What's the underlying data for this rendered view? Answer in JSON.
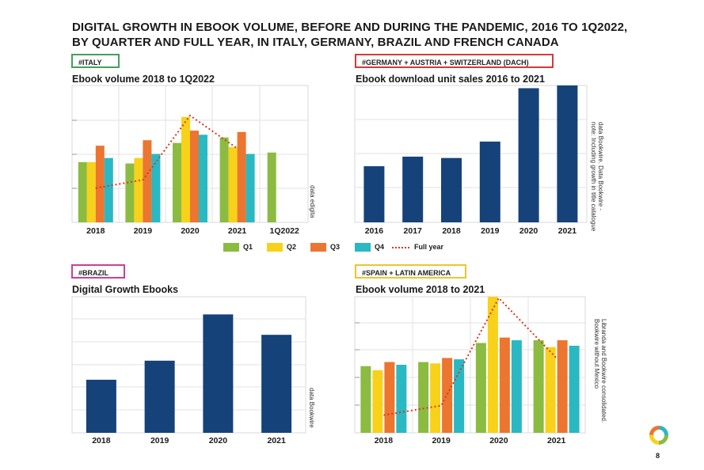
{
  "title_line1": "DIGITAL GROWTH IN EBOOK VOLUME, BEFORE AND DURING THE PANDEMIC, 2016 TO 1Q2022,",
  "title_line2": "BY QUARTER AND FULL YEAR, IN ITALY, GERMANY, BRAZIL AND FRENCH CANADA",
  "page_number": "8",
  "colors": {
    "q1": "#8bbb41",
    "q2": "#f8d11a",
    "q3": "#ec7530",
    "q4": "#2ab8c3",
    "full": "#d43a1f",
    "navy": "#16427a"
  },
  "legend": {
    "q1": "Q1",
    "q2": "Q2",
    "q3": "Q3",
    "q4": "Q4",
    "full": "Full year"
  },
  "italy": {
    "tag": "#ITALY",
    "tag_color": "#45a05a",
    "subtitle": "Ebook volume 2018 to 1Q2022",
    "source": "data edigita"
  },
  "dach": {
    "tag": "#GERMANY + AUSTRIA + SWITZERLAND (DACH)",
    "tag_color": "#d43a3a",
    "subtitle": "Ebook download unit sales 2016 to 2021",
    "source_line1": "data Bookwire. Data Bookwire -",
    "source_line2": "note: Including growth in title catalogue"
  },
  "brazil": {
    "tag": "#BRAZIL",
    "tag_color": "#d13d8f",
    "subtitle": "Digital Growth Ebooks",
    "source": "data Bookwire"
  },
  "spain": {
    "tag": "#SPAIN + LATIN AMERICA",
    "tag_color": "#ecc52c",
    "subtitle": "Ebook volume 2018 to 2021",
    "source_line1": "Libranda and Bookwire consolidated.",
    "source_line2": "Bookwire without Mexico"
  },
  "chart_data": [
    {
      "type": "bar",
      "id": "italy",
      "categories": [
        "2018",
        "2019",
        "2020",
        "2021",
        "1Q2022"
      ],
      "ylim": [
        0,
        100
      ],
      "series": [
        {
          "name": "Q1",
          "values": [
            44,
            43,
            58,
            62,
            51
          ]
        },
        {
          "name": "Q2",
          "values": [
            44,
            47,
            77,
            55,
            null
          ]
        },
        {
          "name": "Q3",
          "values": [
            56,
            60,
            67,
            66,
            null
          ]
        },
        {
          "name": "Q4",
          "values": [
            47,
            50,
            64,
            50,
            null
          ]
        }
      ],
      "line": {
        "name": "Full year",
        "values": [
          25,
          31,
          78,
          54,
          null
        ]
      }
    },
    {
      "type": "bar",
      "id": "dach",
      "categories": [
        "2016",
        "2017",
        "2018",
        "2019",
        "2020",
        "2021"
      ],
      "ylim": [
        0,
        100
      ],
      "values": [
        41,
        48,
        47,
        59,
        98,
        100
      ]
    },
    {
      "type": "bar",
      "id": "brazil",
      "categories": [
        "2018",
        "2019",
        "2020",
        "2021"
      ],
      "ylim": [
        0,
        100
      ],
      "values": [
        39,
        53,
        87,
        72
      ]
    },
    {
      "type": "bar",
      "id": "spain",
      "categories": [
        "2018",
        "2019",
        "2020",
        "2021"
      ],
      "ylim": [
        0,
        100
      ],
      "series": [
        {
          "name": "Q1",
          "values": [
            49,
            52,
            66,
            68
          ]
        },
        {
          "name": "Q2",
          "values": [
            46,
            51,
            100,
            63
          ]
        },
        {
          "name": "Q3",
          "values": [
            52,
            55,
            70,
            68
          ]
        },
        {
          "name": "Q4",
          "values": [
            50,
            54,
            68,
            64
          ]
        }
      ],
      "line": {
        "name": "Full year",
        "values": [
          13,
          20,
          99,
          55
        ]
      }
    }
  ]
}
